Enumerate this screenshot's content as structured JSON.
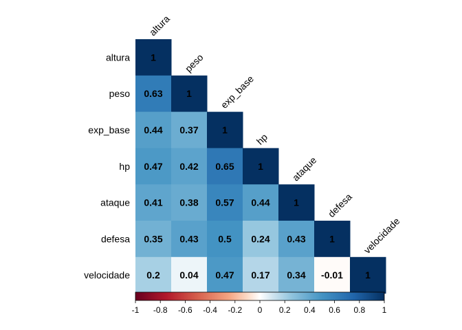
{
  "chart_data": {
    "type": "heatmap",
    "subtype": "correlation-lower-triangle",
    "title": "",
    "variables": [
      "altura",
      "peso",
      "exp_base",
      "hp",
      "ataque",
      "defesa",
      "velocidade"
    ],
    "matrix": [
      [
        1
      ],
      [
        0.63,
        1
      ],
      [
        0.44,
        0.37,
        1
      ],
      [
        0.47,
        0.42,
        0.65,
        1
      ],
      [
        0.41,
        0.38,
        0.57,
        0.44,
        1
      ],
      [
        0.35,
        0.43,
        0.5,
        0.24,
        0.43,
        1
      ],
      [
        0.2,
        0.04,
        0.47,
        0.17,
        0.34,
        -0.01,
        1
      ]
    ],
    "value_labels": [
      [
        "1"
      ],
      [
        "0.63",
        "1"
      ],
      [
        "0.44",
        "0.37",
        "1"
      ],
      [
        "0.47",
        "0.42",
        "0.65",
        "1"
      ],
      [
        "0.41",
        "0.38",
        "0.57",
        "0.44",
        "1"
      ],
      [
        "0.35",
        "0.43",
        "0.5",
        "0.24",
        "0.43",
        "1"
      ],
      [
        "0.2",
        "0.04",
        "0.47",
        "0.17",
        "0.34",
        "-0.01",
        "1"
      ]
    ],
    "color_scale": {
      "range": [
        -1,
        1
      ],
      "stops": [
        {
          "v": -1,
          "color": "#67001F"
        },
        {
          "v": -0.75,
          "color": "#B2182B"
        },
        {
          "v": -0.5,
          "color": "#D6604D"
        },
        {
          "v": -0.25,
          "color": "#F4A582"
        },
        {
          "v": -0.1,
          "color": "#FDDBC7"
        },
        {
          "v": 0,
          "color": "#FFFFFF"
        },
        {
          "v": 0.1,
          "color": "#D1E5F0"
        },
        {
          "v": 0.25,
          "color": "#92C5DE"
        },
        {
          "v": 0.5,
          "color": "#4393C3"
        },
        {
          "v": 0.75,
          "color": "#2166AC"
        },
        {
          "v": 1,
          "color": "#053061"
        }
      ],
      "ticks": [
        "-1",
        "-0.8",
        "-0.6",
        "-0.4",
        "-0.2",
        "0",
        "0.2",
        "0.4",
        "0.6",
        "0.8",
        "1"
      ],
      "position": "bottom"
    },
    "grid": false
  }
}
